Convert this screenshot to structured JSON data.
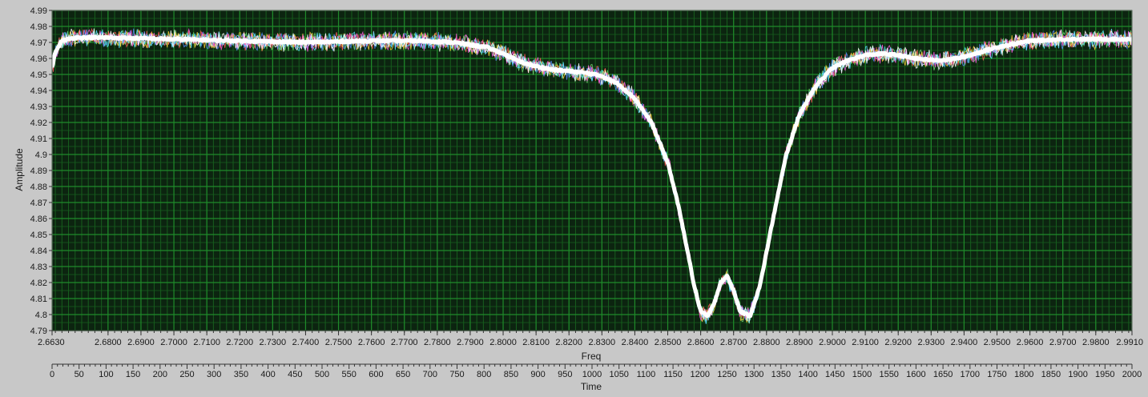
{
  "colors": {
    "plot_background": "#0c2410",
    "grid_major": "#1f8a2a",
    "grid_minor": "#175e1e",
    "frame": "#c8c8c8",
    "mean_trace": "#ffffff",
    "noise_traces": [
      "#6fd36f",
      "#ff5a5a",
      "#5a8cff",
      "#ffd23c",
      "#ff5ae0",
      "#5ae6ff",
      "#ffffff"
    ]
  },
  "chart_data": {
    "type": "line",
    "ylabel": "Amplitude",
    "xlabel": "Freq",
    "x2label": "Time",
    "xlim": [
      2.663,
      2.991
    ],
    "ylim": [
      4.79,
      4.99
    ],
    "x2lim": [
      0,
      2000
    ],
    "grid": true,
    "yticks": [
      "4.79",
      "4.8",
      "4.81",
      "4.82",
      "4.83",
      "4.84",
      "4.85",
      "4.86",
      "4.87",
      "4.88",
      "4.89",
      "4.9",
      "4.91",
      "4.92",
      "4.93",
      "4.94",
      "4.95",
      "4.96",
      "4.97",
      "4.98",
      "4.99"
    ],
    "xticks": [
      {
        "v": 2.663,
        "label": "2.6630"
      },
      {
        "v": 2.68,
        "label": "2.6800"
      },
      {
        "v": 2.69,
        "label": "2.6900"
      },
      {
        "v": 2.7,
        "label": "2.7000"
      },
      {
        "v": 2.71,
        "label": "2.7100"
      },
      {
        "v": 2.72,
        "label": "2.7200"
      },
      {
        "v": 2.73,
        "label": "2.7300"
      },
      {
        "v": 2.74,
        "label": "2.7400"
      },
      {
        "v": 2.75,
        "label": "2.7500"
      },
      {
        "v": 2.76,
        "label": "2.7600"
      },
      {
        "v": 2.77,
        "label": "2.7700"
      },
      {
        "v": 2.78,
        "label": "2.7800"
      },
      {
        "v": 2.79,
        "label": "2.7900"
      },
      {
        "v": 2.8,
        "label": "2.8000"
      },
      {
        "v": 2.81,
        "label": "2.8100"
      },
      {
        "v": 2.82,
        "label": "2.8200"
      },
      {
        "v": 2.83,
        "label": "2.8300"
      },
      {
        "v": 2.84,
        "label": "2.8400"
      },
      {
        "v": 2.85,
        "label": "2.8500"
      },
      {
        "v": 2.86,
        "label": "2.8600"
      },
      {
        "v": 2.87,
        "label": "2.8700"
      },
      {
        "v": 2.88,
        "label": "2.8800"
      },
      {
        "v": 2.89,
        "label": "2.8900"
      },
      {
        "v": 2.9,
        "label": "2.9000"
      },
      {
        "v": 2.91,
        "label": "2.9100"
      },
      {
        "v": 2.92,
        "label": "2.9200"
      },
      {
        "v": 2.93,
        "label": "2.9300"
      },
      {
        "v": 2.94,
        "label": "2.9400"
      },
      {
        "v": 2.95,
        "label": "2.9500"
      },
      {
        "v": 2.96,
        "label": "2.9600"
      },
      {
        "v": 2.97,
        "label": "2.9700"
      },
      {
        "v": 2.98,
        "label": "2.9800"
      },
      {
        "v": 2.991,
        "label": "2.9910"
      }
    ],
    "x2ticks": [
      "0",
      "50",
      "100",
      "150",
      "200",
      "250",
      "300",
      "350",
      "400",
      "450",
      "500",
      "550",
      "600",
      "650",
      "700",
      "750",
      "800",
      "850",
      "900",
      "950",
      "1000",
      "1050",
      "1100",
      "1150",
      "1200",
      "1250",
      "1300",
      "1350",
      "1400",
      "1450",
      "1500",
      "1550",
      "1600",
      "1650",
      "1700",
      "1750",
      "1800",
      "1850",
      "1900",
      "1950",
      "2000"
    ],
    "series": [
      {
        "x": [
          2.663,
          2.664,
          2.666,
          2.67,
          2.68,
          2.7,
          2.72,
          2.74,
          2.76,
          2.775,
          2.785,
          2.795,
          2.8,
          2.805,
          2.81,
          2.815,
          2.82,
          2.825,
          2.83,
          2.835,
          2.84,
          2.845,
          2.85,
          2.853,
          2.856,
          2.858,
          2.86,
          2.862,
          2.864,
          2.866,
          2.868,
          2.87,
          2.872,
          2.875,
          2.878,
          2.882,
          2.886,
          2.89,
          2.895,
          2.9,
          2.905,
          2.91,
          2.915,
          2.92,
          2.925,
          2.93,
          2.935,
          2.94,
          2.945,
          2.95,
          2.955,
          2.96,
          2.97,
          2.98,
          2.991
        ],
        "y": [
          4.954,
          4.964,
          4.971,
          4.973,
          4.973,
          4.972,
          4.971,
          4.97,
          4.971,
          4.971,
          4.97,
          4.967,
          4.963,
          4.958,
          4.955,
          4.953,
          4.952,
          4.951,
          4.949,
          4.944,
          4.935,
          4.92,
          4.895,
          4.87,
          4.84,
          4.818,
          4.802,
          4.799,
          4.806,
          4.82,
          4.824,
          4.815,
          4.802,
          4.799,
          4.818,
          4.86,
          4.9,
          4.925,
          4.943,
          4.954,
          4.959,
          4.962,
          4.963,
          4.962,
          4.96,
          4.959,
          4.959,
          4.961,
          4.964,
          4.967,
          4.969,
          4.971,
          4.972,
          4.972,
          4.972
        ]
      }
    ]
  }
}
